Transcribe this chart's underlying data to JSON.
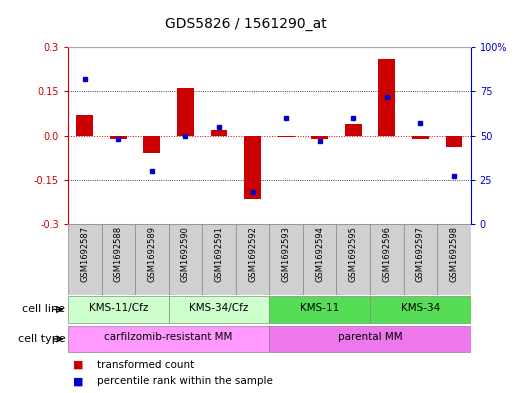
{
  "title": "GDS5826 / 1561290_at",
  "samples": [
    "GSM1692587",
    "GSM1692588",
    "GSM1692589",
    "GSM1692590",
    "GSM1692591",
    "GSM1692592",
    "GSM1692593",
    "GSM1692594",
    "GSM1692595",
    "GSM1692596",
    "GSM1692597",
    "GSM1692598"
  ],
  "transformed_count": [
    0.07,
    -0.01,
    -0.06,
    0.16,
    0.02,
    -0.215,
    -0.005,
    -0.01,
    0.04,
    0.26,
    -0.01,
    -0.04
  ],
  "percentile_rank": [
    82,
    48,
    30,
    50,
    55,
    18,
    60,
    47,
    60,
    72,
    57,
    27
  ],
  "ylim_left": [
    -0.3,
    0.3
  ],
  "ylim_right": [
    0,
    100
  ],
  "yticks_left": [
    -0.3,
    -0.15,
    0.0,
    0.15,
    0.3
  ],
  "yticks_right": [
    0,
    25,
    50,
    75,
    100
  ],
  "cell_line_groups": [
    {
      "label": "KMS-11/Cfz",
      "start": 0,
      "end": 2,
      "color": "#ccffcc"
    },
    {
      "label": "KMS-34/Cfz",
      "start": 3,
      "end": 5,
      "color": "#ccffcc"
    },
    {
      "label": "KMS-11",
      "start": 6,
      "end": 8,
      "color": "#55dd55"
    },
    {
      "label": "KMS-34",
      "start": 9,
      "end": 11,
      "color": "#55dd55"
    }
  ],
  "cell_type_groups": [
    {
      "label": "carfilzomib-resistant MM",
      "start": 0,
      "end": 5,
      "color": "#ff88ff"
    },
    {
      "label": "parental MM",
      "start": 6,
      "end": 11,
      "color": "#ff88ff"
    }
  ],
  "cell_line_row_label": "cell line",
  "cell_type_row_label": "cell type",
  "bar_color": "#cc0000",
  "dot_color": "#0000cc",
  "bg_color": "#ffffff",
  "plot_bg_color": "#ffffff",
  "zero_line_color": "#cc0000",
  "left_axis_color": "#cc0000",
  "right_axis_color": "#0000cc",
  "title_fontsize": 10,
  "tick_fontsize": 7,
  "label_fontsize": 8,
  "gsm_fontsize": 6,
  "row_label_fontsize": 8,
  "cell_row_fontsize": 7.5,
  "legend_fontsize": 7.5
}
